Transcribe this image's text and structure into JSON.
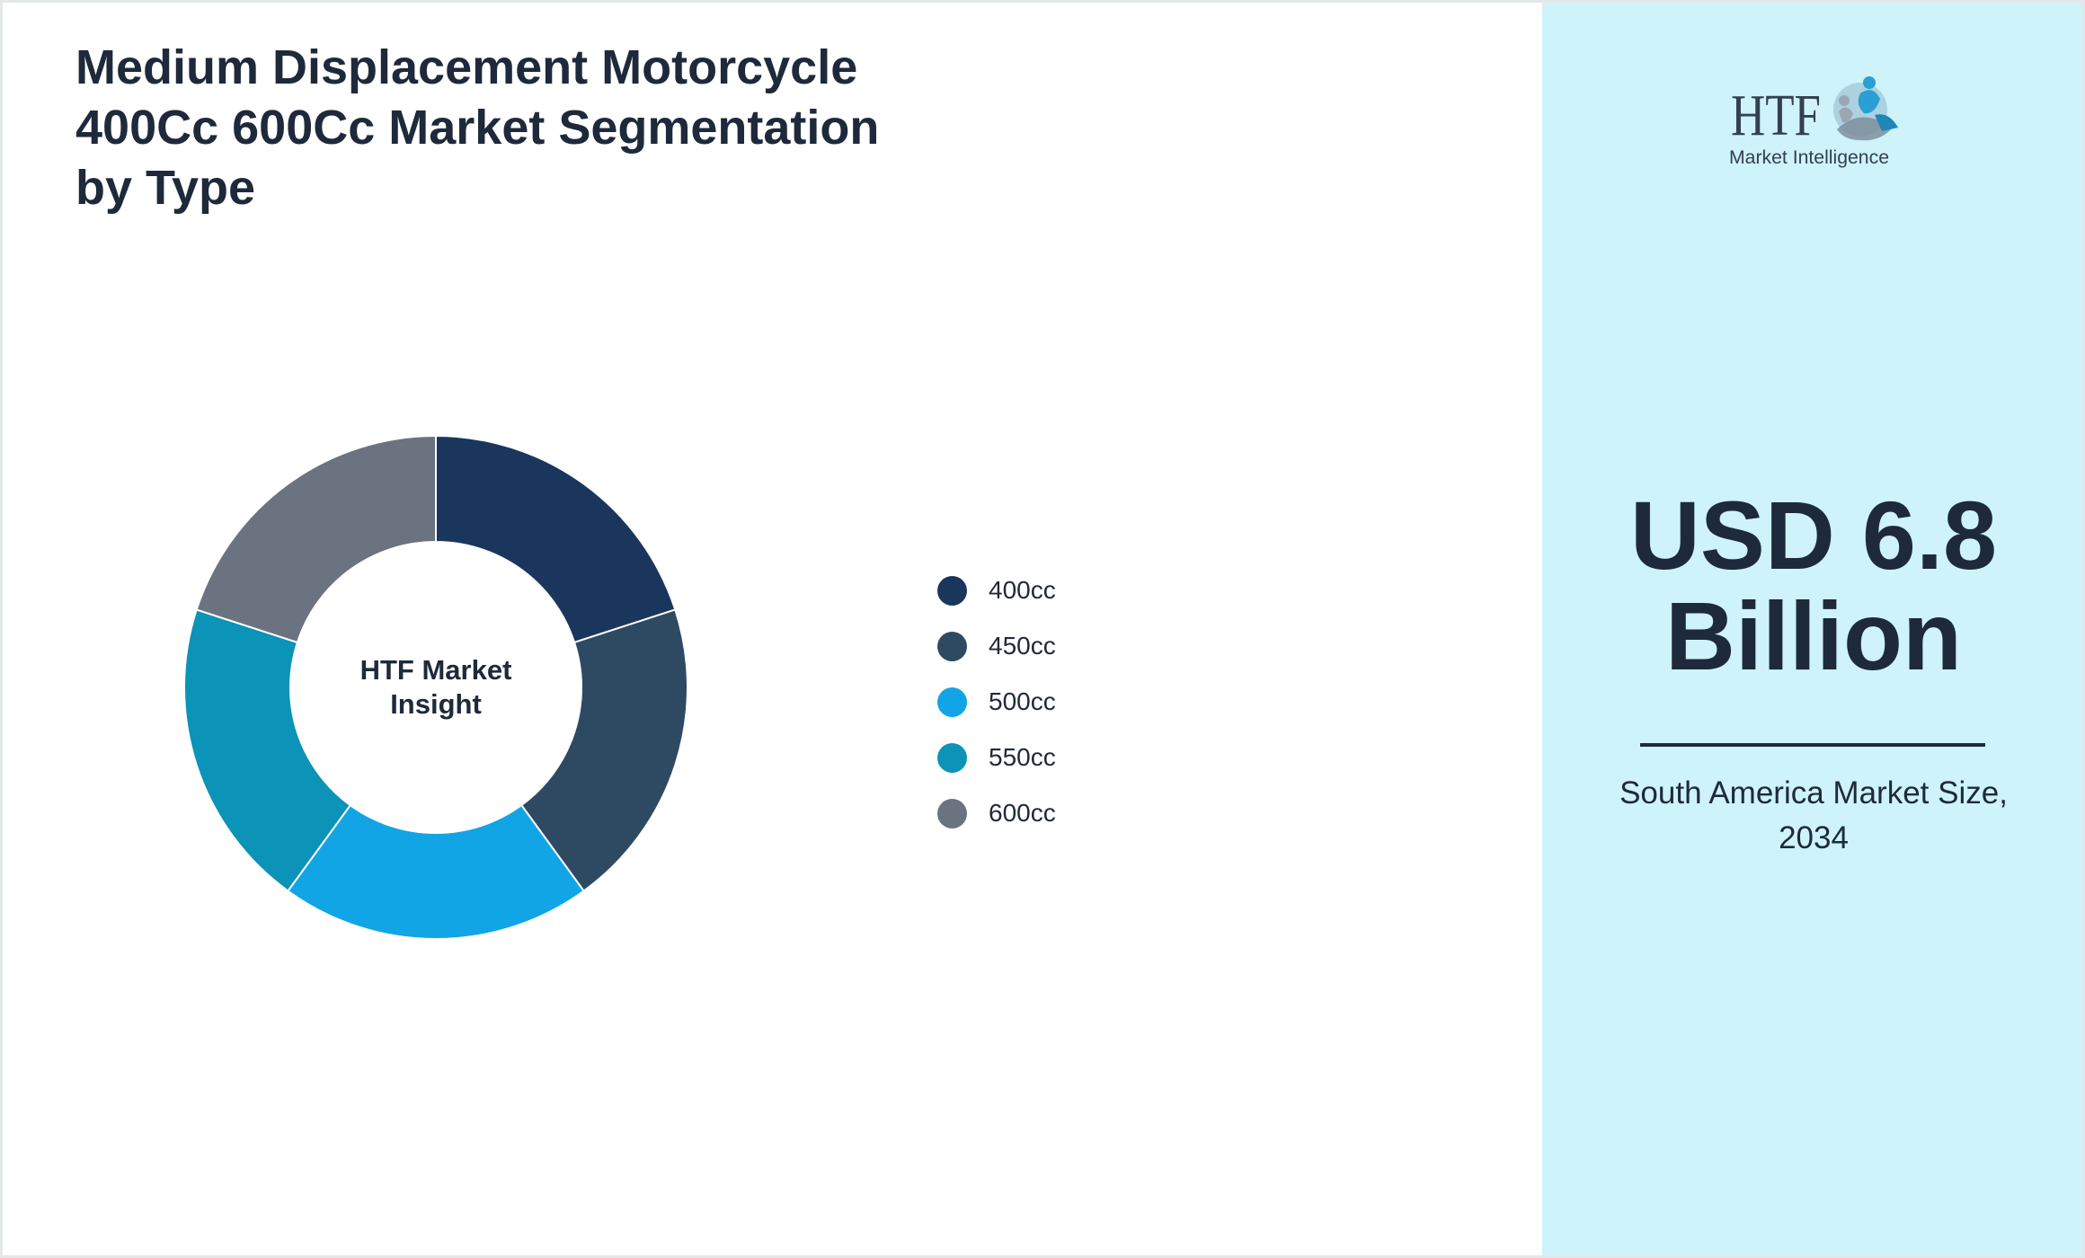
{
  "chart_data": {
    "type": "pie",
    "title": "Medium Displacement Motorcycle 400Cc 600Cc Market Segmentation by Type",
    "center_label": [
      "HTF Market",
      "Insight"
    ],
    "categories": [
      "400cc",
      "450cc",
      "500cc",
      "550cc",
      "600cc"
    ],
    "values": [
      20,
      20,
      20,
      20,
      20
    ],
    "colors": [
      "#1b365d",
      "#2e4a63",
      "#12a5e6",
      "#0b93b8",
      "#6b7280"
    ],
    "legend_placement": "right",
    "donut": true
  },
  "logo": {
    "wordmark": "HTF",
    "tagline": "Market Intelligence",
    "icon": "globe-people-icon"
  },
  "highlight": {
    "value_line1": "USD 6.8",
    "value_line2": "Billion",
    "caption_line1": "South America Market Size,",
    "caption_line2": "2034"
  }
}
